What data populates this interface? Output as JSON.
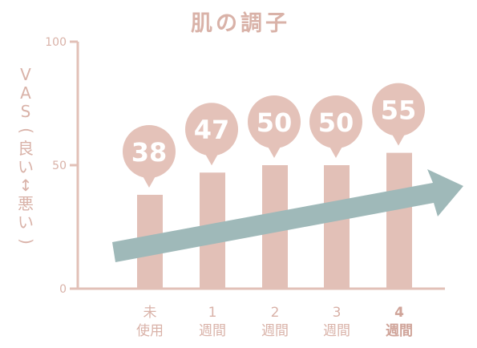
{
  "chart_data": {
    "type": "bar",
    "title": "肌の調子",
    "ylabel": "VAS(良い↕悪い)",
    "ylim": [
      0,
      100
    ],
    "yticks": [
      0,
      50,
      100
    ],
    "categories": [
      {
        "line1": "未",
        "line2": "使用",
        "bold": false
      },
      {
        "line1": "1",
        "line2": "週間",
        "bold": false
      },
      {
        "line1": "2",
        "line2": "週間",
        "bold": false
      },
      {
        "line1": "3",
        "line2": "週間",
        "bold": false
      },
      {
        "line1": "4",
        "line2": "週間",
        "bold": true
      }
    ],
    "values": [
      38,
      47,
      50,
      50,
      55
    ],
    "data_labels": [
      "38",
      "47",
      "50",
      "50",
      "55"
    ],
    "trend_arrow": "upward",
    "grid": false,
    "legend": "none"
  },
  "colors": {
    "bar": "#e2c0b7",
    "axis": "#e2c0b7",
    "text": "#d9b2a8",
    "label_bold": "#cfa398",
    "bubble": "#e4c2b9",
    "bubble_text": "#ffffff",
    "arrow": "#9fb9b9"
  }
}
